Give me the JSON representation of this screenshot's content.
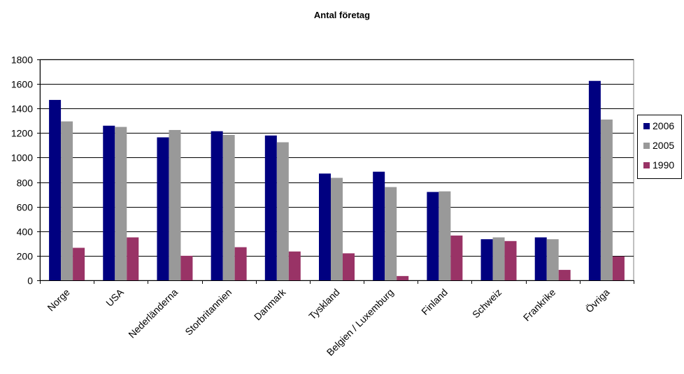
{
  "chart_data": {
    "type": "bar",
    "title": "Antal företag",
    "xlabel": "",
    "ylabel": "",
    "categories": [
      "Norge",
      "USA",
      "Nederländerna",
      "Storbritannien",
      "Danmark",
      "Tyskland",
      "Belgien / Luxemburg",
      "Finland",
      "Schweiz",
      "Frankrike",
      "Övriga"
    ],
    "series": [
      {
        "name": "2006",
        "color": "#000080",
        "values": [
          1470,
          1260,
          1165,
          1215,
          1180,
          870,
          885,
          720,
          335,
          350,
          1625
        ]
      },
      {
        "name": "2005",
        "color": "#999999",
        "values": [
          1295,
          1250,
          1225,
          1185,
          1125,
          835,
          760,
          725,
          350,
          335,
          1310
        ]
      },
      {
        "name": "1990",
        "color": "#993366",
        "values": [
          265,
          350,
          200,
          270,
          235,
          220,
          35,
          365,
          320,
          85,
          195
        ]
      }
    ],
    "ylim": [
      0,
      1800
    ],
    "yticks": [
      0,
      200,
      400,
      600,
      800,
      1000,
      1200,
      1400,
      1600,
      1800
    ],
    "grid": true,
    "legend_position": "right"
  }
}
